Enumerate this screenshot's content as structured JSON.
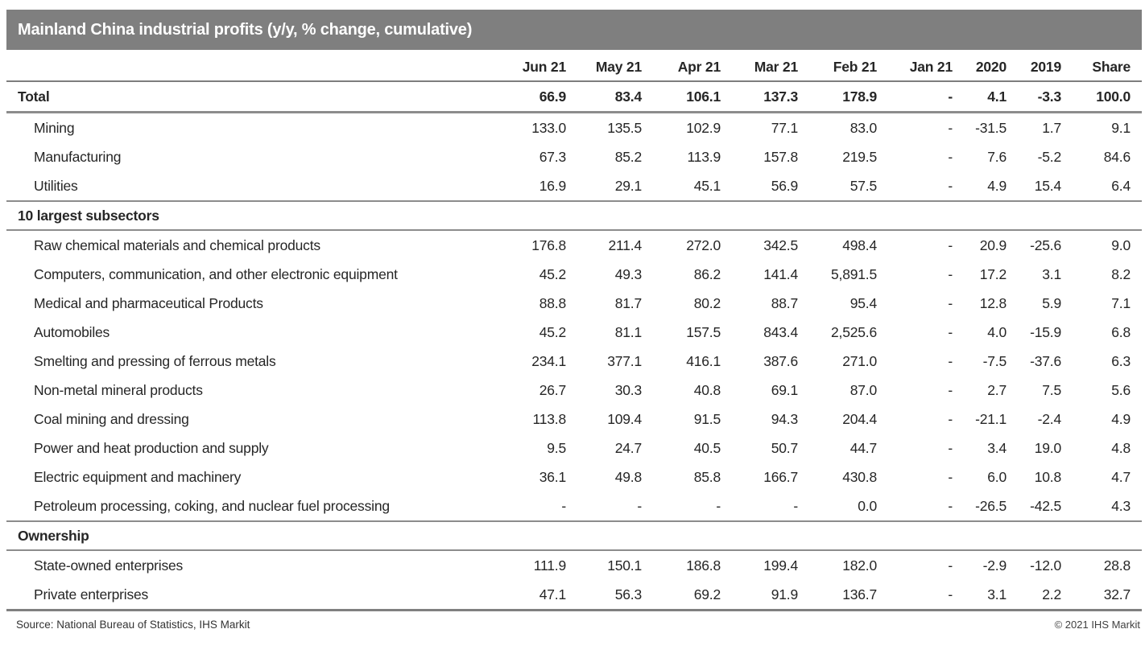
{
  "title_bar": {
    "title": "Mainland China industrial profits (y/y, % change, cumulative)"
  },
  "chart_data": {
    "type": "table",
    "title": "Mainland China industrial profits (y/y, % change, cumulative)",
    "columns": [
      "Jun 21",
      "May 21",
      "Apr 21",
      "Mar 21",
      "Feb 21",
      "Jan 21",
      "2020",
      "2019",
      "Share"
    ],
    "rows": [
      {
        "label": "Total",
        "type": "total",
        "values": [
          "66.9",
          "83.4",
          "106.1",
          "137.3",
          "178.9",
          "-",
          "4.1",
          "-3.3",
          "100.0"
        ]
      },
      {
        "label": "Mining",
        "type": "data",
        "values": [
          "133.0",
          "135.5",
          "102.9",
          "77.1",
          "83.0",
          "-",
          "-31.5",
          "1.7",
          "9.1"
        ]
      },
      {
        "label": "Manufacturing",
        "type": "data",
        "values": [
          "67.3",
          "85.2",
          "113.9",
          "157.8",
          "219.5",
          "-",
          "7.6",
          "-5.2",
          "84.6"
        ]
      },
      {
        "label": "Utilities",
        "type": "data",
        "values": [
          "16.9",
          "29.1",
          "45.1",
          "56.9",
          "57.5",
          "-",
          "4.9",
          "15.4",
          "6.4"
        ]
      },
      {
        "label": "10 largest subsectors",
        "type": "section",
        "values": []
      },
      {
        "label": "Raw chemical materials and chemical products",
        "type": "data",
        "values": [
          "176.8",
          "211.4",
          "272.0",
          "342.5",
          "498.4",
          "-",
          "20.9",
          "-25.6",
          "9.0"
        ]
      },
      {
        "label": "Computers, communication, and other electronic equipment",
        "type": "data",
        "values": [
          "45.2",
          "49.3",
          "86.2",
          "141.4",
          "5,891.5",
          "-",
          "17.2",
          "3.1",
          "8.2"
        ]
      },
      {
        "label": "Medical and pharmaceutical Products",
        "type": "data",
        "values": [
          "88.8",
          "81.7",
          "80.2",
          "88.7",
          "95.4",
          "-",
          "12.8",
          "5.9",
          "7.1"
        ]
      },
      {
        "label": "Automobiles",
        "type": "data",
        "values": [
          "45.2",
          "81.1",
          "157.5",
          "843.4",
          "2,525.6",
          "-",
          "4.0",
          "-15.9",
          "6.8"
        ]
      },
      {
        "label": "Smelting and pressing of ferrous metals",
        "type": "data",
        "values": [
          "234.1",
          "377.1",
          "416.1",
          "387.6",
          "271.0",
          "-",
          "-7.5",
          "-37.6",
          "6.3"
        ]
      },
      {
        "label": "Non-metal mineral products",
        "type": "data",
        "values": [
          "26.7",
          "30.3",
          "40.8",
          "69.1",
          "87.0",
          "-",
          "2.7",
          "7.5",
          "5.6"
        ]
      },
      {
        "label": "Coal mining and dressing",
        "type": "data",
        "values": [
          "113.8",
          "109.4",
          "91.5",
          "94.3",
          "204.4",
          "-",
          "-21.1",
          "-2.4",
          "4.9"
        ]
      },
      {
        "label": "Power and heat production and supply",
        "type": "data",
        "values": [
          "9.5",
          "24.7",
          "40.5",
          "50.7",
          "44.7",
          "-",
          "3.4",
          "19.0",
          "4.8"
        ]
      },
      {
        "label": "Electric equipment and machinery",
        "type": "data",
        "values": [
          "36.1",
          "49.8",
          "85.8",
          "166.7",
          "430.8",
          "-",
          "6.0",
          "10.8",
          "4.7"
        ]
      },
      {
        "label": "Petroleum processing, coking, and nuclear fuel processing",
        "type": "data",
        "values": [
          "-",
          "-",
          "-",
          "-",
          "0.0",
          "-",
          "-26.5",
          "-42.5",
          "4.3"
        ]
      },
      {
        "label": "Ownership",
        "type": "section",
        "values": []
      },
      {
        "label": "State-owned enterprises",
        "type": "data",
        "values": [
          "111.9",
          "150.1",
          "186.8",
          "199.4",
          "182.0",
          "-",
          "-2.9",
          "-12.0",
          "28.8"
        ]
      },
      {
        "label": "Private enterprises",
        "type": "data",
        "values": [
          "47.1",
          "56.3",
          "69.2",
          "91.9",
          "136.7",
          "-",
          "3.1",
          "2.2",
          "32.7"
        ]
      }
    ],
    "layout": {
      "grid": false,
      "section_rows_bold": true,
      "numeric_alignment": "right"
    }
  },
  "footer": {
    "source": "Source: National Bureau of Statistics, IHS Markit",
    "copyright": "© 2021 IHS Markit"
  },
  "colors": {
    "title_bar_bg": "#7f7f7f",
    "title_text": "#ffffff",
    "body_text": "#262626",
    "rule_gray": "#8c8c8c"
  }
}
